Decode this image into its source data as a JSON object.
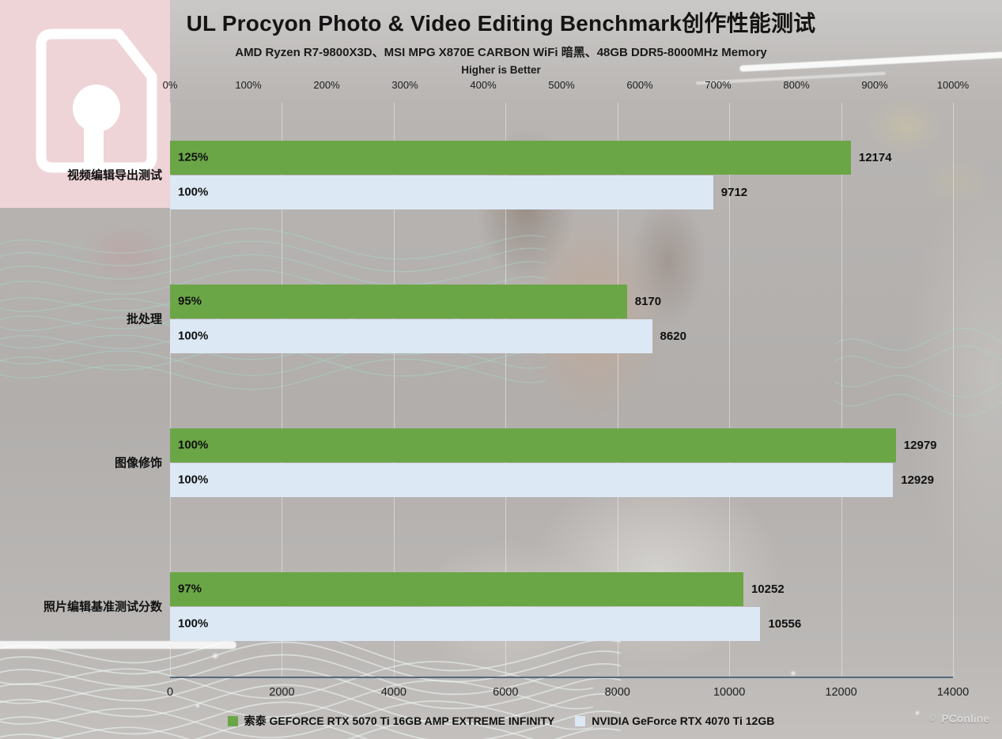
{
  "header": {
    "title": "UL Procyon Photo & Video Editing Benchmark创作性能测试",
    "subtitle": "AMD Ryzen R7-9800X3D、MSI MPG X870E CARBON WiFi 暗黑、48GB DDR5-8000MHz Memory",
    "note": "Higher is Better"
  },
  "chart_data": {
    "type": "bar",
    "orientation": "horizontal",
    "title": "UL Procyon Photo & Video Editing Benchmark创作性能测试",
    "subtitle": "AMD Ryzen R7-9800X3D、MSI MPG X870E CARBON WiFi 暗黑、48GB DDR5-8000MHz Memory",
    "note": "Higher is Better",
    "categories": [
      "视频编辑导出测试",
      "批处理",
      "图像修饰",
      "照片编辑基准测试分数"
    ],
    "series": [
      {
        "name": "索泰 GEFORCE RTX 5070 Ti 16GB AMP EXTREME INFINITY",
        "color": "#6aa646",
        "values": [
          12174,
          8170,
          12979,
          10252
        ],
        "percent_labels": [
          "125%",
          "95%",
          "100%",
          "97%"
        ]
      },
      {
        "name": "NVIDIA GeForce RTX 4070 Ti 12GB",
        "color": "#dce8f4",
        "values": [
          9712,
          8620,
          12929,
          10556
        ],
        "percent_labels": [
          "100%",
          "100%",
          "100%",
          "100%"
        ]
      }
    ],
    "top_axis": {
      "ticks": [
        "0%",
        "100%",
        "200%",
        "300%",
        "400%",
        "500%",
        "600%",
        "700%",
        "800%",
        "900%",
        "1000%"
      ],
      "min": 0,
      "max": 1000
    },
    "bottom_axis": {
      "ticks": [
        "0",
        "2000",
        "4000",
        "6000",
        "8000",
        "10000",
        "12000",
        "14000"
      ],
      "min": 0,
      "max": 14000
    },
    "grid": "vertical lines every 2000",
    "legend_position": "bottom",
    "value_labels": "outside-right",
    "percent_labels_position": "inside-left"
  },
  "watermark": {
    "icon": "©",
    "text": "PConline"
  },
  "colors": {
    "bar_green": "#6aa646",
    "bar_light": "#dce8f4",
    "logo_background": "#eed4d7",
    "axis_line": "#55697c"
  }
}
